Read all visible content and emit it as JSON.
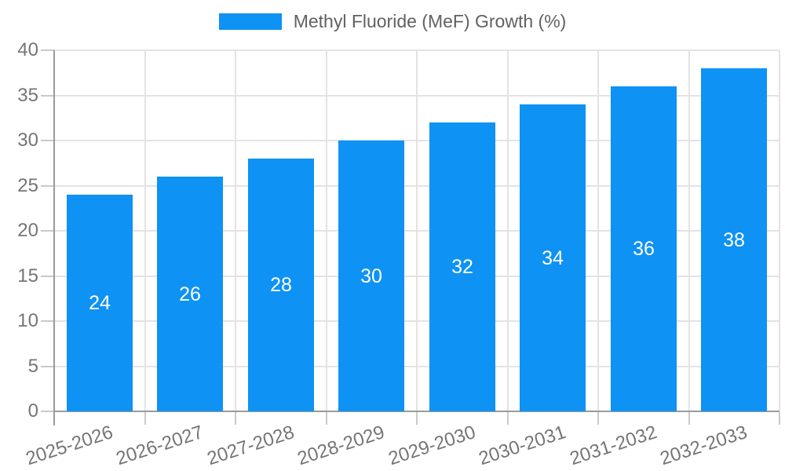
{
  "legend": {
    "label": "Methyl Fluoride (MeF) Growth (%)"
  },
  "chart_data": {
    "type": "bar",
    "title": "Methyl Fluoride (MeF) Growth (%)",
    "categories": [
      "2025-2026",
      "2026-2027",
      "2027-2028",
      "2028-2029",
      "2029-2030",
      "2030-2031",
      "2031-2032",
      "2032-2033"
    ],
    "values": [
      24,
      26,
      28,
      30,
      32,
      34,
      36,
      38
    ],
    "xlabel": "",
    "ylabel": "",
    "ylim": [
      0,
      40
    ],
    "ytick_step": 5,
    "ytick_labels": [
      "0",
      "5",
      "10",
      "15",
      "20",
      "25",
      "30",
      "35",
      "40"
    ],
    "grid": true,
    "legend_position": "top",
    "value_labels_inside_bars": true,
    "x_label_rotation_deg": -18,
    "colors": {
      "bar": "#0e92f4",
      "value_label": "#ffffff",
      "axis": "#9a9a9a",
      "grid": "#e3e3e3",
      "tick": "#c9c9c9",
      "tick_label": "#757575",
      "legend_text": "#616161"
    }
  }
}
